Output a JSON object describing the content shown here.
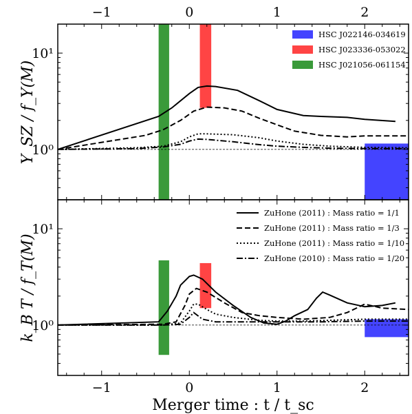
{
  "chart_data": [
    {
      "type": "line",
      "panel": "top",
      "ylabel": "Y_SZ / f_Y(M)",
      "yscale": "log",
      "ylim": [
        0.3,
        20
      ],
      "xlim": [
        -1.5,
        2.5
      ],
      "yticks": [
        {
          "value": 1,
          "label": "10⁰"
        },
        {
          "value": 10,
          "label": "10¹"
        }
      ],
      "reference_line": 1.0,
      "legend_position": "top-right",
      "legend": [
        {
          "label": "HSC J022146-034619",
          "color": "#4444ff"
        },
        {
          "label": "HSC J023336-053022",
          "color": "#ff4444"
        },
        {
          "label": "HSC J021056-061154",
          "color": "#3a9a3a"
        }
      ],
      "shaded_regions": [
        {
          "name": "HSC J021056-061154",
          "color": "#3a9a3a",
          "x": [
            -0.35,
            -0.23
          ],
          "y": [
            0.3,
            20
          ]
        },
        {
          "name": "HSC J023336-053022",
          "color": "#ff4444",
          "x": [
            0.12,
            0.25
          ],
          "y": [
            2.7,
            20
          ]
        },
        {
          "name": "HSC J022146-034619",
          "color": "#4444ff",
          "x": [
            2.0,
            2.5
          ],
          "y": [
            0.3,
            1.15
          ]
        }
      ],
      "series": [
        {
          "name": "ZuHone (2011) : Mass ratio = 1/1",
          "style": "solid",
          "x": [
            -1.5,
            -0.35,
            -0.2,
            0.0,
            0.1,
            0.2,
            0.3,
            0.55,
            0.8,
            1.0,
            1.3,
            1.5,
            1.8,
            2.0,
            2.35
          ],
          "y": [
            1.0,
            2.2,
            2.7,
            3.8,
            4.4,
            4.55,
            4.5,
            4.1,
            3.2,
            2.6,
            2.25,
            2.2,
            2.15,
            2.05,
            1.95
          ]
        },
        {
          "name": "ZuHone (2011) : Mass ratio = 1/3",
          "style": "dashed",
          "x": [
            -1.5,
            -0.5,
            -0.3,
            -0.1,
            0.05,
            0.2,
            0.4,
            0.6,
            0.8,
            1.0,
            1.2,
            1.5,
            1.8,
            2.0,
            2.5
          ],
          "y": [
            1.0,
            1.4,
            1.6,
            2.0,
            2.5,
            2.75,
            2.7,
            2.5,
            2.1,
            1.8,
            1.55,
            1.4,
            1.35,
            1.38,
            1.38
          ]
        },
        {
          "name": "ZuHone (2011) : Mass ratio = 1/10",
          "style": "dotted",
          "x": [
            -1.5,
            -0.6,
            -0.3,
            -0.1,
            0.0,
            0.1,
            0.2,
            0.5,
            0.8,
            1.0,
            1.3,
            1.6,
            2.0,
            2.5
          ],
          "y": [
            1.0,
            1.04,
            1.08,
            1.2,
            1.35,
            1.45,
            1.45,
            1.42,
            1.32,
            1.22,
            1.13,
            1.08,
            1.05,
            1.04
          ]
        },
        {
          "name": "ZuHone (2010) : Mass ratio = 1/20",
          "style": "dashdot",
          "x": [
            -1.5,
            -0.6,
            -0.3,
            -0.1,
            0.0,
            0.1,
            0.2,
            0.5,
            0.8,
            1.0,
            1.3,
            1.6,
            2.0,
            2.5
          ],
          "y": [
            1.0,
            1.02,
            1.06,
            1.13,
            1.22,
            1.28,
            1.27,
            1.2,
            1.12,
            1.08,
            1.05,
            1.03,
            1.02,
            1.02
          ]
        }
      ]
    },
    {
      "type": "line",
      "panel": "bottom",
      "ylabel": "k_B T / f_T(M)",
      "xlabel": "Merger time : t / t_sc",
      "yscale": "log",
      "ylim": [
        0.3,
        20
      ],
      "xlim": [
        -1.5,
        2.5
      ],
      "xticks": [
        -1,
        0,
        1,
        2
      ],
      "yticks": [
        {
          "value": 1,
          "label": "10⁰"
        },
        {
          "value": 10,
          "label": "10¹"
        }
      ],
      "reference_line": 1.0,
      "legend_position": "top-right",
      "legend": [
        {
          "label": "ZuHone (2011) : Mass ratio = 1/1",
          "style": "solid"
        },
        {
          "label": "ZuHone (2011) : Mass ratio = 1/3",
          "style": "dashed"
        },
        {
          "label": "ZuHone (2011) : Mass ratio = 1/10",
          "style": "dotted"
        },
        {
          "label": "ZuHone (2010) : Mass ratio = 1/20",
          "style": "dashdot"
        }
      ],
      "shaded_regions": [
        {
          "name": "HSC J021056-061154",
          "color": "#3a9a3a",
          "x": [
            -0.35,
            -0.23
          ],
          "y": [
            0.49,
            4.7
          ]
        },
        {
          "name": "HSC J023336-053022",
          "color": "#ff4444",
          "x": [
            0.12,
            0.25
          ],
          "y": [
            1.5,
            4.4
          ]
        },
        {
          "name": "HSC J022146-034619",
          "color": "#4444ff",
          "x": [
            2.0,
            2.5
          ],
          "y": [
            0.75,
            1.15
          ]
        }
      ],
      "series": [
        {
          "name": "ZuHone (2011) : Mass ratio = 1/1",
          "style": "solid",
          "x": [
            -1.5,
            -0.35,
            -0.25,
            -0.15,
            -0.1,
            0.0,
            0.05,
            0.15,
            0.3,
            0.5,
            0.7,
            0.85,
            1.0,
            1.1,
            1.2,
            1.35,
            1.45,
            1.52,
            1.6,
            1.8,
            2.0,
            2.2,
            2.35
          ],
          "y": [
            1.0,
            1.08,
            1.4,
            2.0,
            2.6,
            3.2,
            3.3,
            3.0,
            2.2,
            1.6,
            1.2,
            1.05,
            1.02,
            1.1,
            1.25,
            1.45,
            1.9,
            2.2,
            2.05,
            1.7,
            1.55,
            1.6,
            1.7
          ]
        },
        {
          "name": "ZuHone (2011) : Mass ratio = 1/3",
          "style": "dashed",
          "x": [
            -1.5,
            -0.3,
            -0.15,
            -0.05,
            0.0,
            0.08,
            0.2,
            0.4,
            0.6,
            0.8,
            1.0,
            1.3,
            1.6,
            1.8,
            2.0,
            2.2,
            2.5
          ],
          "y": [
            1.0,
            1.02,
            1.08,
            1.6,
            2.1,
            2.4,
            2.2,
            1.7,
            1.35,
            1.25,
            1.2,
            1.15,
            1.2,
            1.35,
            1.65,
            1.5,
            1.45
          ]
        },
        {
          "name": "ZuHone (2011) : Mass ratio = 1/10",
          "style": "dotted",
          "x": [
            -1.5,
            -0.3,
            -0.1,
            0.0,
            0.05,
            0.1,
            0.2,
            0.3,
            0.5,
            0.8,
            1.0,
            1.3,
            1.6,
            2.0,
            2.5
          ],
          "y": [
            1.0,
            1.0,
            1.05,
            1.4,
            1.65,
            1.65,
            1.45,
            1.3,
            1.2,
            1.12,
            1.1,
            1.1,
            1.12,
            1.15,
            1.15
          ]
        },
        {
          "name": "ZuHone (2010) : Mass ratio = 1/20",
          "style": "dashdot",
          "x": [
            -1.5,
            -0.3,
            -0.1,
            0.0,
            0.05,
            0.15,
            0.3,
            0.6,
            1.0,
            1.5,
            2.0,
            2.5
          ],
          "y": [
            1.0,
            1.0,
            1.02,
            1.2,
            1.35,
            1.15,
            1.08,
            1.08,
            1.08,
            1.08,
            1.1,
            1.1
          ]
        }
      ]
    }
  ]
}
